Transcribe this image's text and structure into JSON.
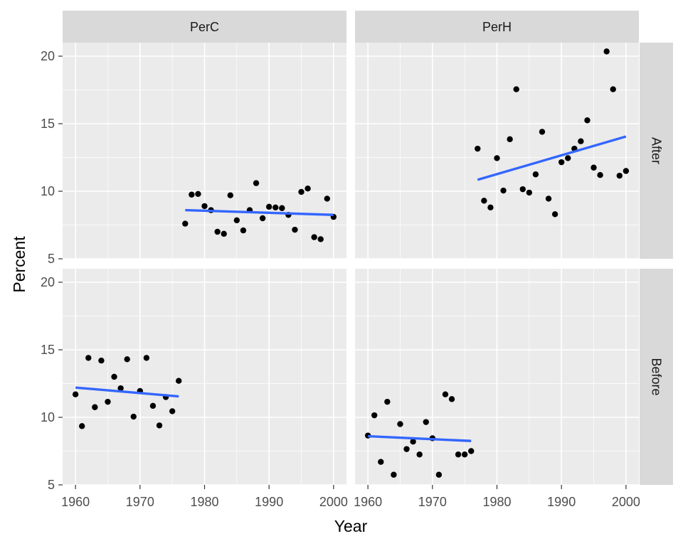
{
  "chart_data": {
    "type": "scatter",
    "title": "",
    "xlabel": "Year",
    "ylabel": "Percent",
    "xlim": [
      1958,
      2002
    ],
    "ylim": [
      5,
      21
    ],
    "x_ticks": [
      "1960",
      "1970",
      "1980",
      "1990",
      "2000"
    ],
    "y_ticks": [
      "5",
      "10",
      "15",
      "20"
    ],
    "grid": true,
    "facets": {
      "columns": [
        "PerC",
        "PerH"
      ],
      "rows": [
        "After",
        "Before"
      ]
    },
    "colors": {
      "points": "#000000",
      "trend": "#3366ff",
      "panel": "#ebebeb",
      "strip": "#d9d9d9",
      "grid": "#ffffff"
    },
    "panels": [
      {
        "column": "PerC",
        "row": "After",
        "points": [
          [
            1977,
            7.6
          ],
          [
            1978,
            9.75
          ],
          [
            1979,
            9.8
          ],
          [
            1980,
            8.9
          ],
          [
            1981,
            8.6
          ],
          [
            1982,
            7.0
          ],
          [
            1983,
            6.85
          ],
          [
            1984,
            9.7
          ],
          [
            1985,
            7.85
          ],
          [
            1986,
            7.1
          ],
          [
            1987,
            8.6
          ],
          [
            1988,
            10.6
          ],
          [
            1989,
            8.0
          ],
          [
            1990,
            8.85
          ],
          [
            1991,
            8.8
          ],
          [
            1992,
            8.75
          ],
          [
            1993,
            8.25
          ],
          [
            1994,
            7.15
          ],
          [
            1995,
            9.95
          ],
          [
            1996,
            10.2
          ],
          [
            1997,
            6.6
          ],
          [
            1998,
            6.45
          ],
          [
            1999,
            9.45
          ],
          [
            2000,
            8.1
          ]
        ],
        "trend": [
          [
            1977,
            8.6
          ],
          [
            2000,
            8.25
          ]
        ]
      },
      {
        "column": "PerH",
        "row": "After",
        "points": [
          [
            1977,
            13.15
          ],
          [
            1978,
            9.3
          ],
          [
            1979,
            8.8
          ],
          [
            1980,
            12.45
          ],
          [
            1981,
            10.05
          ],
          [
            1982,
            13.85
          ],
          [
            1983,
            17.55
          ],
          [
            1984,
            10.15
          ],
          [
            1985,
            9.9
          ],
          [
            1986,
            11.25
          ],
          [
            1987,
            14.4
          ],
          [
            1988,
            9.45
          ],
          [
            1989,
            8.3
          ],
          [
            1990,
            12.15
          ],
          [
            1991,
            12.45
          ],
          [
            1992,
            13.15
          ],
          [
            1993,
            13.7
          ],
          [
            1994,
            15.25
          ],
          [
            1995,
            11.75
          ],
          [
            1996,
            11.2
          ],
          [
            1997,
            20.35
          ],
          [
            1998,
            17.55
          ],
          [
            1999,
            11.15
          ],
          [
            2000,
            11.5
          ]
        ],
        "trend": [
          [
            1977,
            10.85
          ],
          [
            2000,
            14.05
          ]
        ]
      },
      {
        "column": "PerC",
        "row": "Before",
        "points": [
          [
            1960,
            11.7
          ],
          [
            1961,
            9.35
          ],
          [
            1962,
            14.4
          ],
          [
            1963,
            10.75
          ],
          [
            1964,
            14.2
          ],
          [
            1965,
            11.15
          ],
          [
            1966,
            13.0
          ],
          [
            1967,
            12.15
          ],
          [
            1968,
            14.3
          ],
          [
            1969,
            10.05
          ],
          [
            1970,
            11.95
          ],
          [
            1971,
            14.4
          ],
          [
            1972,
            10.85
          ],
          [
            1973,
            9.4
          ],
          [
            1974,
            11.5
          ],
          [
            1975,
            10.45
          ],
          [
            1976,
            12.7
          ]
        ],
        "trend": [
          [
            1960,
            12.2
          ],
          [
            1976,
            11.55
          ]
        ]
      },
      {
        "column": "PerH",
        "row": "Before",
        "points": [
          [
            1960,
            8.65
          ],
          [
            1961,
            10.15
          ],
          [
            1962,
            6.7
          ],
          [
            1963,
            11.15
          ],
          [
            1964,
            5.75
          ],
          [
            1965,
            9.5
          ],
          [
            1966,
            7.65
          ],
          [
            1967,
            8.2
          ],
          [
            1968,
            7.25
          ],
          [
            1969,
            9.65
          ],
          [
            1970,
            8.45
          ],
          [
            1971,
            5.75
          ],
          [
            1972,
            11.7
          ],
          [
            1973,
            11.35
          ],
          [
            1974,
            7.25
          ],
          [
            1975,
            7.25
          ],
          [
            1976,
            7.5
          ]
        ],
        "trend": [
          [
            1960,
            8.6
          ],
          [
            1976,
            8.25
          ]
        ]
      }
    ]
  }
}
